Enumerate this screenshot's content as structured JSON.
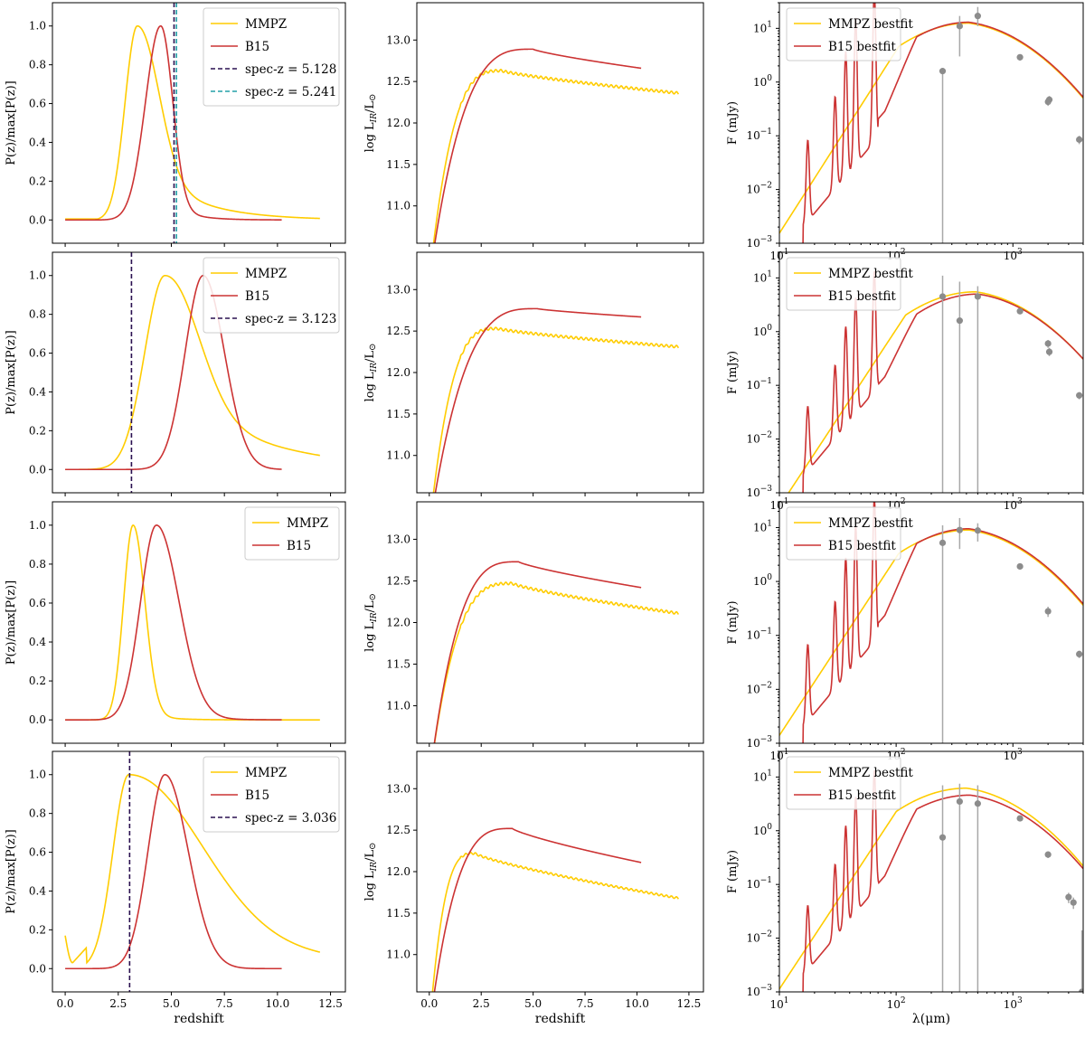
{
  "figure": {
    "colors": {
      "mmpz": "#ffcc00",
      "b15": "#cc3333",
      "axis": "#000000",
      "point": "#8c8c8c",
      "errbar": "#a8a8a8",
      "spec1": "#2a1050",
      "spec2": "#23a0a8"
    },
    "left_axes": {
      "ylabel": "P(z)/max[P(z)]",
      "xlabel": "redshift",
      "xlim": [
        -0.6,
        13.2
      ],
      "ylim": [
        -0.12,
        1.12
      ],
      "xticks": [
        {
          "v": 0.0,
          "t": "0.0"
        },
        {
          "v": 2.5,
          "t": "2.5"
        },
        {
          "v": 5.0,
          "t": "5.0"
        },
        {
          "v": 7.5,
          "t": "7.5"
        },
        {
          "v": 10.0,
          "t": "10.0"
        },
        {
          "v": 12.5,
          "t": "12.5"
        }
      ],
      "yticks": [
        {
          "v": 0.0,
          "t": "0.0"
        },
        {
          "v": 0.2,
          "t": "0.2"
        },
        {
          "v": 0.4,
          "t": "0.4"
        },
        {
          "v": 0.6,
          "t": "0.6"
        },
        {
          "v": 0.8,
          "t": "0.8"
        },
        {
          "v": 1.0,
          "t": "1.0"
        }
      ]
    },
    "middle_axes": {
      "ylabel": "log L",
      "ylabel_sub": "IR",
      "ylabel_tail": "/L",
      "ylabel_sun": "⊙",
      "xlabel": "redshift",
      "xlim": [
        -0.6,
        13.2
      ],
      "ylim": [
        10.55,
        13.45
      ],
      "xticks": [
        {
          "v": 0.0,
          "t": "0.0"
        },
        {
          "v": 2.5,
          "t": "2.5"
        },
        {
          "v": 5.0,
          "t": "5.0"
        },
        {
          "v": 7.5,
          "t": "7.5"
        },
        {
          "v": 10.0,
          "t": "10.0"
        },
        {
          "v": 12.5,
          "t": "12.5"
        }
      ],
      "yticks": [
        {
          "v": 11.0,
          "t": "11.0"
        },
        {
          "v": 11.5,
          "t": "11.5"
        },
        {
          "v": 12.0,
          "t": "12.0"
        },
        {
          "v": 12.5,
          "t": "12.5"
        },
        {
          "v": 13.0,
          "t": "13.0"
        }
      ]
    },
    "right_axes": {
      "ylabel": "F (mJy)",
      "xlabel": "λ(μm)",
      "xlim": [
        10,
        4000
      ],
      "ylim": [
        0.001,
        30
      ],
      "xticks": [
        {
          "v": 10,
          "b": "10",
          "e": "1"
        },
        {
          "v": 100,
          "b": "10",
          "e": "2"
        },
        {
          "v": 1000,
          "b": "10",
          "e": "3"
        }
      ],
      "yticks": [
        {
          "v": 0.001,
          "b": "10",
          "e": "−3"
        },
        {
          "v": 0.01,
          "b": "10",
          "e": "−2"
        },
        {
          "v": 0.1,
          "b": "10",
          "e": "−1"
        },
        {
          "v": 1,
          "b": "10",
          "e": "0"
        },
        {
          "v": 10,
          "b": "10",
          "e": "1"
        }
      ]
    }
  },
  "chart_data": [
    {
      "type": "line",
      "row": 1,
      "column": "left",
      "xlabel": "",
      "ylabel": "P(z)/max[P(z)]",
      "legend": [
        "MMPZ",
        "B15",
        "spec-z = 5.128",
        "spec-z = 5.241"
      ],
      "series": [
        {
          "name": "MMPZ",
          "kind": "peak",
          "x_end": 12.0,
          "peak": 3.4,
          "sl": 0.58,
          "sr": 0.95,
          "tail_amp": 0.33,
          "tail_scale": 2.3,
          "floor": 0.005
        },
        {
          "name": "B15",
          "kind": "peak",
          "x_end": 10.2,
          "peak": 4.5,
          "sl": 0.72,
          "sr": 0.55,
          "tail_amp": 0.12,
          "tail_scale": 1.0,
          "floor": 0.0
        }
      ],
      "vlines": [
        {
          "label": "spec-z = 5.128",
          "x": 5.128,
          "color": "spec1"
        },
        {
          "label": "spec-z = 5.241",
          "x": 5.241,
          "color": "spec2"
        }
      ]
    },
    {
      "type": "line",
      "row": 1,
      "column": "middle",
      "ylabel": "log LIR/L⊙",
      "series": [
        {
          "name": "MMPZ",
          "kind": "lir",
          "x_end": 12.0,
          "peak_z": 3.5,
          "peak_val": 12.63,
          "end_val": 12.36,
          "wiggle": 0.015
        },
        {
          "name": "B15",
          "kind": "lir",
          "x_end": 10.2,
          "peak_z": 5.0,
          "peak_val": 12.89,
          "end_val": 12.66,
          "wiggle": 0
        }
      ]
    },
    {
      "type": "line",
      "row": 1,
      "column": "right",
      "ylabel": "F (mJy)",
      "legend": [
        "MMPZ bestfit",
        "B15 bestfit"
      ],
      "series": [
        {
          "name": "MMPZ bestfit",
          "kind": "sed_mmpz",
          "peak_wl": 420,
          "peak_f": 12.5,
          "width": 0.55,
          "slope": 3.4,
          "hi": 1.0
        },
        {
          "name": "B15 bestfit",
          "kind": "sed_b15",
          "peak_wl": 420,
          "peak_f": 13.0,
          "width": 0.45,
          "pah_scale": 1.0
        }
      ],
      "points": [
        {
          "wl": 250,
          "f": 1.6,
          "lo": 0.001,
          "hi": 1.6
        },
        {
          "wl": 350,
          "f": 11,
          "lo": 3.0,
          "hi": 17
        },
        {
          "wl": 500,
          "f": 17,
          "lo": 11,
          "hi": 25
        },
        {
          "wl": 1150,
          "f": 2.9,
          "lo": 2.5,
          "hi": 3.3
        },
        {
          "wl": 2000,
          "f": 0.43,
          "lo": 0.36,
          "hi": 0.52
        },
        {
          "wl": 2050,
          "f": 0.47,
          "lo": 0.4,
          "hi": 0.55
        },
        {
          "wl": 3700,
          "f": 0.085,
          "lo": 0.07,
          "hi": 0.1
        }
      ]
    },
    {
      "type": "line",
      "row": 2,
      "column": "left",
      "ylabel": "P(z)/max[P(z)]",
      "legend": [
        "MMPZ",
        "B15",
        "spec-z = 3.123"
      ],
      "series": [
        {
          "name": "MMPZ",
          "kind": "peak",
          "x_end": 12.0,
          "peak": 4.7,
          "sl": 0.95,
          "sr": 1.45,
          "tail_amp": 0.45,
          "tail_scale": 4.0,
          "floor": 0.0
        },
        {
          "name": "B15",
          "kind": "peak",
          "x_end": 10.2,
          "peak": 6.5,
          "sl": 0.85,
          "sr": 1.0,
          "tail_amp": 0.0,
          "tail_scale": 1.0,
          "floor": 0.0
        }
      ],
      "vlines": [
        {
          "label": "spec-z = 3.123",
          "x": 3.123,
          "color": "spec1"
        }
      ]
    },
    {
      "type": "line",
      "row": 2,
      "column": "middle",
      "ylabel": "log LIR/L⊙",
      "series": [
        {
          "name": "MMPZ",
          "kind": "lir",
          "x_end": 12.0,
          "peak_z": 3.3,
          "peak_val": 12.53,
          "end_val": 12.31,
          "wiggle": 0.015
        },
        {
          "name": "B15",
          "kind": "lir",
          "x_end": 10.2,
          "peak_z": 5.2,
          "peak_val": 12.77,
          "end_val": 12.67,
          "wiggle": 0
        }
      ]
    },
    {
      "type": "line",
      "row": 2,
      "column": "right",
      "ylabel": "F (mJy)",
      "legend": [
        "MMPZ bestfit",
        "B15 bestfit"
      ],
      "series": [
        {
          "name": "MMPZ bestfit",
          "kind": "sed_mmpz",
          "peak_wl": 480,
          "peak_f": 5.5,
          "width": 0.55,
          "slope": 3.3,
          "hi": 1.0
        },
        {
          "name": "B15 bestfit",
          "kind": "sed_b15",
          "peak_wl": 500,
          "peak_f": 5.0,
          "width": 0.45,
          "pah_scale": 0.45
        }
      ],
      "points": [
        {
          "wl": 250,
          "f": 4.5,
          "lo": 0.001,
          "hi": 11
        },
        {
          "wl": 350,
          "f": 1.6,
          "lo": 0.001,
          "hi": 8.5
        },
        {
          "wl": 500,
          "f": 4.5,
          "lo": 0.001,
          "hi": 7
        },
        {
          "wl": 1150,
          "f": 2.4,
          "lo": 2.1,
          "hi": 2.7
        },
        {
          "wl": 2000,
          "f": 0.6,
          "lo": 0.5,
          "hi": 0.7
        },
        {
          "wl": 2050,
          "f": 0.42,
          "lo": 0.35,
          "hi": 0.5
        },
        {
          "wl": 3700,
          "f": 0.065,
          "lo": 0.055,
          "hi": 0.075
        }
      ]
    },
    {
      "type": "line",
      "row": 3,
      "column": "left",
      "ylabel": "P(z)/max[P(z)]",
      "legend": [
        "MMPZ",
        "B15"
      ],
      "series": [
        {
          "name": "MMPZ",
          "kind": "peak",
          "x_end": 12.0,
          "peak": 3.2,
          "sl": 0.45,
          "sr": 0.55,
          "tail_amp": 0.05,
          "tail_scale": 1.0,
          "floor": 0.0
        },
        {
          "name": "B15",
          "kind": "peak",
          "x_end": 10.2,
          "peak": 4.3,
          "sl": 0.75,
          "sr": 1.05,
          "tail_amp": 0.06,
          "tail_scale": 1.2,
          "floor": 0.0
        }
      ],
      "vlines": []
    },
    {
      "type": "line",
      "row": 3,
      "column": "middle",
      "ylabel": "log LIR/L⊙",
      "series": [
        {
          "name": "MMPZ",
          "kind": "lir",
          "x_end": 12.0,
          "peak_z": 4.0,
          "peak_val": 12.47,
          "end_val": 12.11,
          "wiggle": 0.015
        },
        {
          "name": "B15",
          "kind": "lir",
          "x_end": 10.2,
          "peak_z": 4.3,
          "peak_val": 12.73,
          "end_val": 12.42,
          "wiggle": 0
        }
      ]
    },
    {
      "type": "line",
      "row": 3,
      "column": "right",
      "ylabel": "F (mJy)",
      "legend": [
        "MMPZ bestfit",
        "B15 bestfit"
      ],
      "series": [
        {
          "name": "MMPZ bestfit",
          "kind": "sed_mmpz",
          "peak_wl": 420,
          "peak_f": 9.0,
          "width": 0.55,
          "slope": 3.3,
          "hi": 1.0
        },
        {
          "name": "B15 bestfit",
          "kind": "sed_b15",
          "peak_wl": 420,
          "peak_f": 9.5,
          "width": 0.45,
          "pah_scale": 0.8
        }
      ],
      "points": [
        {
          "wl": 250,
          "f": 5.2,
          "lo": 0.001,
          "hi": 11
        },
        {
          "wl": 350,
          "f": 9.0,
          "lo": 4.0,
          "hi": 15
        },
        {
          "wl": 500,
          "f": 8.8,
          "lo": 5.5,
          "hi": 12
        },
        {
          "wl": 1150,
          "f": 1.9,
          "lo": 1.7,
          "hi": 2.1
        },
        {
          "wl": 2000,
          "f": 0.28,
          "lo": 0.22,
          "hi": 0.34
        },
        {
          "wl": 3700,
          "f": 0.045,
          "lo": 0.038,
          "hi": 0.052
        }
      ]
    },
    {
      "type": "line",
      "row": 4,
      "column": "left",
      "ylabel": "P(z)/max[P(z)]",
      "legend": [
        "MMPZ",
        "B15",
        "spec-z = 3.036"
      ],
      "series": [
        {
          "name": "MMPZ",
          "kind": "peak4",
          "x_end": 12.0,
          "peak": 3.0,
          "sl": 0.75,
          "sr": 3.2,
          "tail_amp": 0.3,
          "tail_scale": 6.0,
          "floor": 0.0
        },
        {
          "name": "B15",
          "kind": "peak",
          "x_end": 10.2,
          "peak": 4.7,
          "sl": 0.8,
          "sr": 1.1,
          "tail_amp": 0.0,
          "tail_scale": 1.0,
          "floor": 0.0
        }
      ],
      "vlines": [
        {
          "label": "spec-z = 3.036",
          "x": 3.036,
          "color": "spec1"
        }
      ]
    },
    {
      "type": "line",
      "row": 4,
      "column": "middle",
      "ylabel": "log LIR/L⊙",
      "series": [
        {
          "name": "MMPZ",
          "kind": "lir",
          "x_end": 12.0,
          "peak_z": 2.2,
          "peak_val": 12.22,
          "end_val": 11.68,
          "wiggle": 0.012
        },
        {
          "name": "B15",
          "kind": "lir",
          "x_end": 10.2,
          "peak_z": 4.0,
          "peak_val": 12.52,
          "end_val": 12.11,
          "wiggle": 0
        }
      ]
    },
    {
      "type": "line",
      "row": 4,
      "column": "right",
      "ylabel": "F (mJy)",
      "legend": [
        "MMPZ bestfit",
        "B15 bestfit"
      ],
      "series": [
        {
          "name": "MMPZ bestfit",
          "kind": "sed_mmpz",
          "peak_wl": 400,
          "peak_f": 6.2,
          "width": 0.55,
          "slope": 3.3,
          "hi": 1.0
        },
        {
          "name": "B15 bestfit",
          "kind": "sed_b15",
          "peak_wl": 430,
          "peak_f": 4.6,
          "width": 0.47,
          "pah_scale": 0.45
        }
      ],
      "points": [
        {
          "wl": 250,
          "f": 0.75,
          "lo": 0.001,
          "hi": 7
        },
        {
          "wl": 350,
          "f": 3.5,
          "lo": 0.001,
          "hi": 7.5
        },
        {
          "wl": 500,
          "f": 3.2,
          "lo": 0.001,
          "hi": 7
        },
        {
          "wl": 1150,
          "f": 1.7,
          "lo": 1.5,
          "hi": 1.9
        },
        {
          "wl": 2000,
          "f": 0.36,
          "lo": 0.31,
          "hi": 0.41
        },
        {
          "wl": 3000,
          "f": 0.058,
          "lo": 0.045,
          "hi": 0.07
        },
        {
          "wl": 3300,
          "f": 0.046,
          "lo": 0.035,
          "hi": 0.057
        },
        {
          "wl": 3900,
          "f": 0.001,
          "lo": 0.001,
          "hi": 0.014
        }
      ]
    }
  ]
}
